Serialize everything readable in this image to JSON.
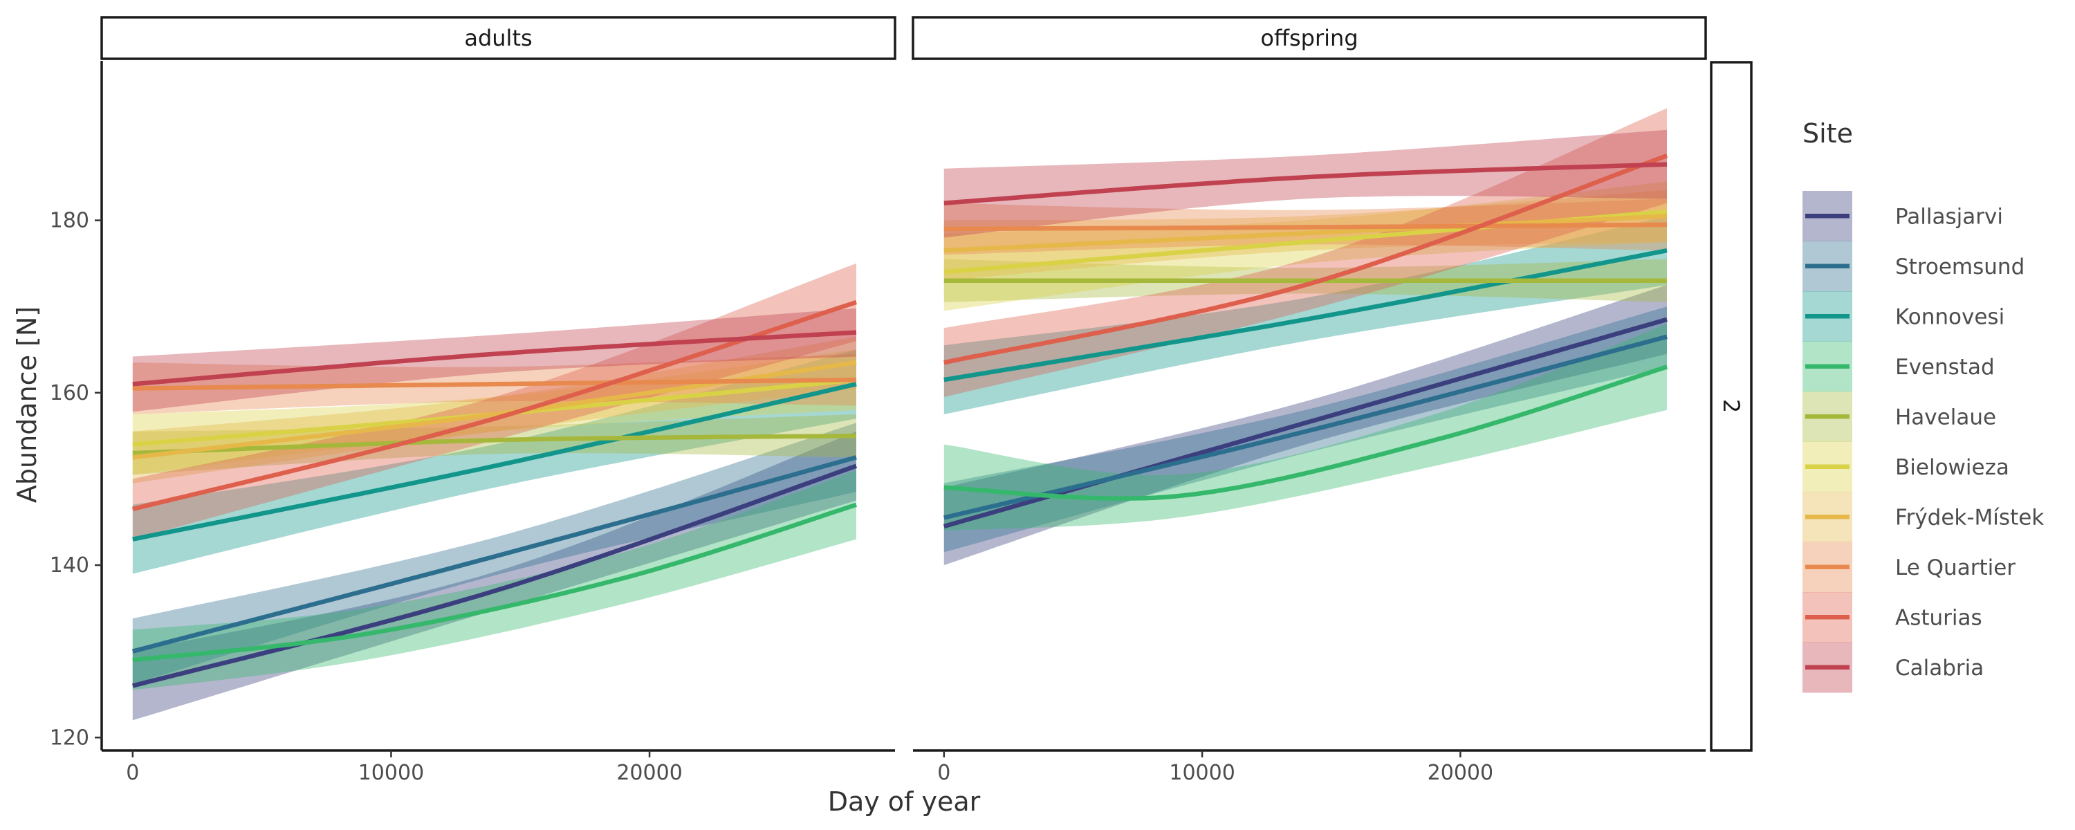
{
  "chart_data": {
    "type": "line",
    "xlabel": "Day of year",
    "ylabel": "Abundance [N]",
    "xlim": [
      -1200,
      29500
    ],
    "ylim": [
      118.5,
      198.5
    ],
    "xticks": [
      0,
      10000,
      20000
    ],
    "yticks": [
      120,
      140,
      160,
      180
    ],
    "facet_row_label": "2",
    "legend": {
      "title": "Site",
      "placement": "right"
    },
    "ribbons": true,
    "panels": [
      {
        "label": "adults",
        "series": [
          {
            "name": "Pallasjarvi",
            "x": [
              0,
              14000,
              28000
            ],
            "y": [
              126,
              137,
              151.5
            ],
            "band": [
              4,
              2.2,
              4
            ]
          },
          {
            "name": "Stroemsund",
            "x": [
              0,
              14000,
              28000
            ],
            "y": [
              130,
              141,
              152.5
            ],
            "band": [
              3.8,
              2.2,
              4
            ]
          },
          {
            "name": "Konnovesi",
            "x": [
              0,
              14000,
              28000
            ],
            "y": [
              143,
              151.5,
              161
            ],
            "band": [
              4,
              2.5,
              4
            ]
          },
          {
            "name": "Evenstad",
            "x": [
              0,
              9000,
              19000,
              28000
            ],
            "y": [
              129,
              132,
              138.5,
              147
            ],
            "band": [
              3.5,
              3,
              3,
              4
            ]
          },
          {
            "name": "Havelaue",
            "x": [
              0,
              14000,
              28000
            ],
            "y": [
              153,
              154.5,
              155
            ],
            "band": [
              2.5,
              1.6,
              2.5
            ]
          },
          {
            "name": "Bielowieza",
            "x": [
              0,
              14000,
              28000
            ],
            "y": [
              154,
              157.5,
              161.5
            ],
            "band": [
              3.5,
              2,
              3.5
            ]
          },
          {
            "name": "Frýdek-Místek",
            "x": [
              0,
              14000,
              28000
            ],
            "y": [
              152.5,
              157.5,
              163.5
            ],
            "band": [
              3,
              2,
              3
            ]
          },
          {
            "name": "Le Quartier",
            "x": [
              0,
              14000,
              28000
            ],
            "y": [
              160.5,
              161,
              161.5
            ],
            "band": [
              3,
              2,
              3
            ]
          },
          {
            "name": "Asturias",
            "x": [
              0,
              14000,
              28000
            ],
            "y": [
              146.5,
              157,
              170.5
            ],
            "band": [
              3.5,
              2.5,
              4.5
            ]
          },
          {
            "name": "Calabria",
            "x": [
              0,
              14000,
              28000
            ],
            "y": [
              161,
              164.5,
              167
            ],
            "band": [
              3.2,
              2.2,
              2.8
            ]
          }
        ]
      },
      {
        "label": "offspring",
        "series": [
          {
            "name": "Pallasjarvi",
            "x": [
              0,
              14000,
              28000
            ],
            "y": [
              144.5,
              156.5,
              168.5
            ],
            "band": [
              4.5,
              2.5,
              4
            ]
          },
          {
            "name": "Stroemsund",
            "x": [
              0,
              14000,
              28000
            ],
            "y": [
              145.5,
              155.5,
              166.5
            ],
            "band": [
              4,
              2.5,
              3.5
            ]
          },
          {
            "name": "Konnovesi",
            "x": [
              0,
              14000,
              28000
            ],
            "y": [
              161.5,
              168.5,
              176.5
            ],
            "band": [
              4,
              2.5,
              4
            ]
          },
          {
            "name": "Evenstad",
            "x": [
              0,
              9000,
              19000,
              28000
            ],
            "y": [
              149,
              148,
              154.5,
              163
            ],
            "band": [
              5,
              2.5,
              3,
              5
            ]
          },
          {
            "name": "Havelaue",
            "x": [
              0,
              14000,
              28000
            ],
            "y": [
              173,
              173,
              173
            ],
            "band": [
              2.5,
              1.5,
              2.5
            ]
          },
          {
            "name": "Bielowieza",
            "x": [
              0,
              14000,
              28000
            ],
            "y": [
              174,
              177.5,
              181
            ],
            "band": [
              4.5,
              2.5,
              3.5
            ]
          },
          {
            "name": "Frýdek-Místek",
            "x": [
              0,
              14000,
              28000
            ],
            "y": [
              176.5,
              178.5,
              180.5
            ],
            "band": [
              3.5,
              2,
              3
            ]
          },
          {
            "name": "Le Quartier",
            "x": [
              0,
              14000,
              28000
            ],
            "y": [
              179,
              179.2,
              179.5
            ],
            "band": [
              3,
              2,
              3
            ]
          },
          {
            "name": "Asturias",
            "x": [
              0,
              14000,
              28000
            ],
            "y": [
              163.5,
              172.5,
              187.5
            ],
            "band": [
              4,
              3,
              5.5
            ]
          },
          {
            "name": "Calabria",
            "x": [
              0,
              14000,
              28000
            ],
            "y": [
              182,
              185,
              186.5
            ],
            "band": [
              4,
              2.5,
              4
            ]
          }
        ]
      }
    ],
    "colors": {
      "Pallasjarvi": "#3b3f7e",
      "Stroemsund": "#2c6e8e",
      "Konnovesi": "#12968c",
      "Evenstad": "#35b86b",
      "Havelaue": "#a6b83c",
      "Bielowieza": "#d9d246",
      "Frýdek-Místek": "#e6b84a",
      "Le Quartier": "#e88a4e",
      "Asturias": "#dd5f4c",
      "Calabria": "#c0414f"
    }
  }
}
